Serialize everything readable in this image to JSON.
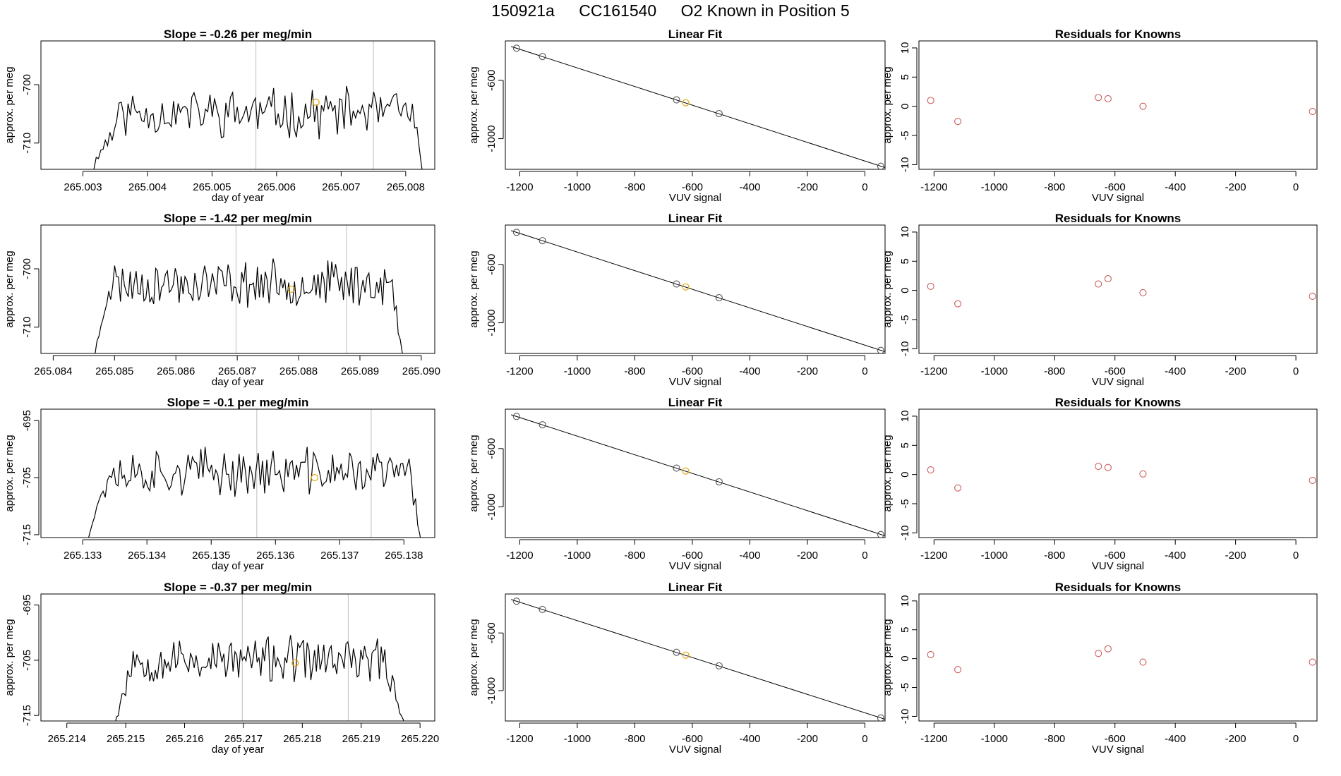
{
  "header": {
    "title_parts": [
      "150921a",
      "CC161540",
      "O2 Known in Position  5"
    ]
  },
  "colors": {
    "trace": "#000000",
    "marker": "#E69F00",
    "fit_point": "#CD5C5C",
    "vline": "#BEBEBE"
  },
  "chart_data": [
    {
      "type": "line",
      "row": 0,
      "col": 0,
      "title": "Slope =  -0.26  per meg/min",
      "xlabel": "day of year",
      "ylabel": "approx. per meg",
      "xlim": [
        265.00235,
        265.00845
      ],
      "ylim": [
        -714.5,
        -692.5
      ],
      "xticks": [
        265.003,
        265.004,
        265.005,
        265.006,
        265.007,
        265.008
      ],
      "xtick_labels": [
        "265.003",
        "265.004",
        "265.005",
        "265.006",
        "265.007",
        "265.008"
      ],
      "yticks": [
        -700,
        -710
      ],
      "ytick_labels": [
        "-700",
        "-710"
      ],
      "vlines": [
        265.00568,
        265.0075
      ],
      "marker": {
        "x": 265.00661,
        "y": -703
      },
      "trace": {
        "x_start": 265.00303,
        "x_end": 265.00828,
        "n": 150,
        "base": -704.8,
        "amp": 3.4,
        "plateau_start": 265.0036,
        "plateau_end": 265.0081,
        "seed": 11
      }
    },
    {
      "type": "line",
      "row": 1,
      "col": 0,
      "title": "Slope =  -1.42  per meg/min",
      "xlabel": "day of year",
      "ylabel": "approx. per meg",
      "xlim": [
        265.0838,
        265.09022
      ],
      "ylim": [
        -714.5,
        -692.5
      ],
      "xticks": [
        265.084,
        265.085,
        265.086,
        265.087,
        265.088,
        265.089,
        265.09
      ],
      "xtick_labels": [
        "265.084",
        "265.085",
        "265.086",
        "265.087",
        "265.088",
        "265.089",
        "265.090"
      ],
      "yticks": [
        -700,
        -710
      ],
      "ytick_labels": [
        "-700",
        "-710"
      ],
      "vlines": [
        265.08698,
        265.08878
      ],
      "marker": {
        "x": 265.08788,
        "y": -703.5
      },
      "trace": {
        "x_start": 265.08465,
        "x_end": 265.08972,
        "n": 160,
        "base": -702.5,
        "amp": 3.2,
        "plateau_start": 265.0849,
        "plateau_end": 265.0895,
        "seed": 23
      }
    },
    {
      "type": "line",
      "row": 2,
      "col": 0,
      "title": "Slope =  -0.1  per meg/min",
      "xlabel": "day of year",
      "ylabel": "approx. per meg",
      "xlim": [
        265.13235,
        265.13848
      ],
      "ylim": [
        -715.5,
        -693
      ],
      "xticks": [
        265.133,
        265.134,
        265.135,
        265.136,
        265.137,
        265.138
      ],
      "xtick_labels": [
        "265.133",
        "265.134",
        "265.135",
        "265.136",
        "265.137",
        "265.138"
      ],
      "yticks": [
        -695,
        -705,
        -715
      ],
      "ytick_labels": [
        "-695",
        "-705",
        "-715"
      ],
      "vlines": [
        265.13571,
        265.13749
      ],
      "marker": {
        "x": 265.13661,
        "y": -705
      },
      "trace": {
        "x_start": 265.13302,
        "x_end": 265.13828,
        "n": 160,
        "base": -704,
        "amp": 3.4,
        "plateau_start": 265.1334,
        "plateau_end": 265.1381,
        "seed": 37
      }
    },
    {
      "type": "line",
      "row": 3,
      "col": 0,
      "title": "Slope =  -0.37  per meg/min",
      "xlabel": "day of year",
      "ylabel": "approx. per meg",
      "xlim": [
        265.21356,
        265.22025
      ],
      "ylim": [
        -716,
        -693
      ],
      "xticks": [
        265.214,
        265.215,
        265.216,
        265.217,
        265.218,
        265.219,
        265.22
      ],
      "xtick_labels": [
        "265.214",
        "265.215",
        "265.216",
        "265.217",
        "265.218",
        "265.219",
        "265.220"
      ],
      "yticks": [
        -695,
        -705,
        -715
      ],
      "ytick_labels": [
        "-695",
        "-705",
        "-715"
      ],
      "vlines": [
        265.21698,
        265.21878
      ],
      "marker": {
        "x": 265.21788,
        "y": -705.5
      },
      "trace": {
        "x_start": 265.21478,
        "x_end": 265.21978,
        "n": 160,
        "base": -705,
        "amp": 3.4,
        "plateau_start": 265.2151,
        "plateau_end": 265.2194,
        "seed": 53
      }
    },
    {
      "type": "scatter",
      "row": 0,
      "col": 1,
      "title": "Linear Fit",
      "xlabel": "VUV signal",
      "ylabel": "approx. per meg",
      "xlim": [
        -1250,
        70
      ],
      "ylim": [
        -1210,
        -330
      ],
      "xticks": [
        -1200,
        -1000,
        -800,
        -600,
        -400,
        -200,
        0
      ],
      "xtick_labels": [
        "-1200",
        "-1000",
        "-800",
        "-600",
        "-400",
        "-200",
        "0"
      ],
      "yticks": [
        -600,
        -1000
      ],
      "ytick_labels": [
        "-600",
        "-1000"
      ],
      "fit_line": {
        "x": [
          -1230,
          70
        ],
        "y": [
          -368,
          -1198
        ]
      },
      "points": {
        "x": [
          -1211,
          -1121,
          -655,
          -623,
          -507,
          55
        ],
        "y": [
          -380,
          -437,
          -734,
          -754,
          -828,
          -1189
        ]
      },
      "marker_point": {
        "x": -623,
        "y": -754
      }
    },
    {
      "type": "scatter",
      "row": 1,
      "col": 1,
      "title": "Linear Fit",
      "xlabel": "VUV signal",
      "ylabel": "approx. per meg",
      "xlim": [
        -1250,
        70
      ],
      "ylim": [
        -1210,
        -330
      ],
      "xticks": [
        -1200,
        -1000,
        -800,
        -600,
        -400,
        -200,
        0
      ],
      "xtick_labels": [
        "-1200",
        "-1000",
        "-800",
        "-600",
        "-400",
        "-200",
        "0"
      ],
      "yticks": [
        -600,
        -1000
      ],
      "ytick_labels": [
        "-600",
        "-1000"
      ],
      "fit_line": {
        "x": [
          -1230,
          70
        ],
        "y": [
          -368,
          -1198
        ]
      },
      "points": {
        "x": [
          -1211,
          -1121,
          -655,
          -623,
          -507,
          55
        ],
        "y": [
          -380,
          -437,
          -734,
          -754,
          -828,
          -1189
        ]
      },
      "marker_point": {
        "x": -623,
        "y": -754
      }
    },
    {
      "type": "scatter",
      "row": 2,
      "col": 1,
      "title": "Linear Fit",
      "xlabel": "VUV signal",
      "ylabel": "approx. per meg",
      "xlim": [
        -1250,
        70
      ],
      "ylim": [
        -1210,
        -330
      ],
      "xticks": [
        -1200,
        -1000,
        -800,
        -600,
        -400,
        -200,
        0
      ],
      "xtick_labels": [
        "-1200",
        "-1000",
        "-800",
        "-600",
        "-400",
        "-200",
        "0"
      ],
      "yticks": [
        -600,
        -1000
      ],
      "ytick_labels": [
        "-600",
        "-1000"
      ],
      "fit_line": {
        "x": [
          -1230,
          70
        ],
        "y": [
          -368,
          -1198
        ]
      },
      "points": {
        "x": [
          -1211,
          -1121,
          -655,
          -623,
          -507,
          55
        ],
        "y": [
          -380,
          -437,
          -734,
          -754,
          -828,
          -1189
        ]
      },
      "marker_point": {
        "x": -623,
        "y": -754
      }
    },
    {
      "type": "scatter",
      "row": 3,
      "col": 1,
      "title": "Linear Fit",
      "xlabel": "VUV signal",
      "ylabel": "approx. per meg",
      "xlim": [
        -1250,
        70
      ],
      "ylim": [
        -1210,
        -330
      ],
      "xticks": [
        -1200,
        -1000,
        -800,
        -600,
        -400,
        -200,
        0
      ],
      "xtick_labels": [
        "-1200",
        "-1000",
        "-800",
        "-600",
        "-400",
        "-200",
        "0"
      ],
      "yticks": [
        -600,
        -1000
      ],
      "ytick_labels": [
        "-600",
        "-1000"
      ],
      "fit_line": {
        "x": [
          -1230,
          70
        ],
        "y": [
          -368,
          -1198
        ]
      },
      "points": {
        "x": [
          -1211,
          -1121,
          -655,
          -623,
          -507,
          55
        ],
        "y": [
          -380,
          -437,
          -734,
          -754,
          -828,
          -1189
        ]
      },
      "marker_point": {
        "x": -623,
        "y": -754
      }
    },
    {
      "type": "scatter",
      "row": 0,
      "col": 2,
      "title": "Residuals for Knowns",
      "xlabel": "VUV signal",
      "ylabel": "approx. per meg",
      "xlim": [
        -1250,
        70
      ],
      "ylim": [
        -10.8,
        11.2
      ],
      "xticks": [
        -1200,
        -1000,
        -800,
        -600,
        -400,
        -200,
        0
      ],
      "xtick_labels": [
        "-1200",
        "-1000",
        "-800",
        "-600",
        "-400",
        "-200",
        "0"
      ],
      "yticks": [
        10,
        5,
        0,
        -5,
        -10
      ],
      "ytick_labels": [
        "10",
        "5",
        "0",
        "-5",
        "-10"
      ],
      "points": {
        "x": [
          -1211,
          -1121,
          -655,
          -623,
          -507,
          55
        ],
        "y": [
          1.0,
          -2.6,
          1.5,
          1.3,
          0.0,
          -0.9
        ]
      }
    },
    {
      "type": "scatter",
      "row": 1,
      "col": 2,
      "title": "Residuals for Knowns",
      "xlabel": "VUV signal",
      "ylabel": "approx. per meg",
      "xlim": [
        -1250,
        70
      ],
      "ylim": [
        -10.8,
        11.2
      ],
      "xticks": [
        -1200,
        -1000,
        -800,
        -600,
        -400,
        -200,
        0
      ],
      "xtick_labels": [
        "-1200",
        "-1000",
        "-800",
        "-600",
        "-400",
        "-200",
        "0"
      ],
      "yticks": [
        10,
        5,
        0,
        -5,
        -10
      ],
      "ytick_labels": [
        "10",
        "5",
        "0",
        "-5",
        "-10"
      ],
      "points": {
        "x": [
          -1211,
          -1121,
          -655,
          -623,
          -507,
          55
        ],
        "y": [
          0.7,
          -2.3,
          1.1,
          2.0,
          -0.4,
          -1.0
        ]
      }
    },
    {
      "type": "scatter",
      "row": 2,
      "col": 2,
      "title": "Residuals for Knowns",
      "xlabel": "VUV signal",
      "ylabel": "approx. per meg",
      "xlim": [
        -1250,
        70
      ],
      "ylim": [
        -10.8,
        11.2
      ],
      "xticks": [
        -1200,
        -1000,
        -800,
        -600,
        -400,
        -200,
        0
      ],
      "xtick_labels": [
        "-1200",
        "-1000",
        "-800",
        "-600",
        "-400",
        "-200",
        "0"
      ],
      "yticks": [
        10,
        5,
        0,
        -5,
        -10
      ],
      "ytick_labels": [
        "10",
        "5",
        "0",
        "-5",
        "-10"
      ],
      "points": {
        "x": [
          -1211,
          -1121,
          -655,
          -623,
          -507,
          55
        ],
        "y": [
          0.8,
          -2.3,
          1.4,
          1.2,
          0.1,
          -1.0
        ]
      }
    },
    {
      "type": "scatter",
      "row": 3,
      "col": 2,
      "title": "Residuals for Knowns",
      "xlabel": "VUV signal",
      "ylabel": "approx. per meg",
      "xlim": [
        -1250,
        70
      ],
      "ylim": [
        -10.8,
        11.2
      ],
      "xticks": [
        -1200,
        -1000,
        -800,
        -600,
        -400,
        -200,
        0
      ],
      "xtick_labels": [
        "-1200",
        "-1000",
        "-800",
        "-600",
        "-400",
        "-200",
        "0"
      ],
      "yticks": [
        10,
        5,
        0,
        -5,
        -10
      ],
      "ytick_labels": [
        "10",
        "5",
        "0",
        "-5",
        "-10"
      ],
      "points": {
        "x": [
          -1211,
          -1121,
          -655,
          -623,
          -507,
          55
        ],
        "y": [
          0.7,
          -1.9,
          0.9,
          1.7,
          -0.6,
          -0.6
        ]
      }
    }
  ]
}
